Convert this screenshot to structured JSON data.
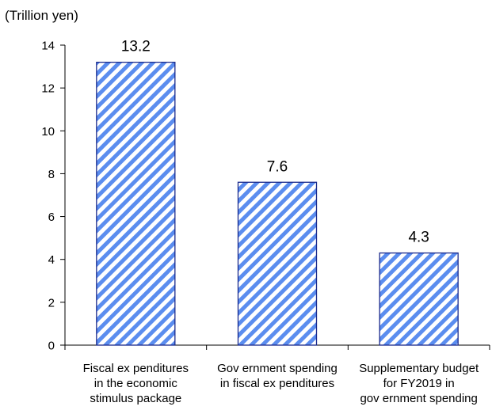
{
  "chart_data": {
    "type": "bar",
    "unit_label": "(Trillion yen)",
    "categories": [
      "Fiscal ex penditures\nin the economic\nstimulus package",
      "Gov ernment spending\nin fiscal ex penditures",
      "Supplementary budget\nfor FY2019 in\ngov ernment spending"
    ],
    "values": [
      13.2,
      7.6,
      4.3
    ],
    "data_labels": [
      "13.2",
      "7.6",
      "4.3"
    ],
    "yticks": [
      "0",
      "2",
      "4",
      "6",
      "8",
      "10",
      "12",
      "14"
    ],
    "ylim": [
      0,
      14
    ],
    "grid": false,
    "legend": "none",
    "bar_fill": "hatched diagonal stripes",
    "colors": {
      "stripe": "#5b8def",
      "background": "#ffffff",
      "bar_border": "#1a2a8c",
      "axis": "#000000"
    }
  }
}
